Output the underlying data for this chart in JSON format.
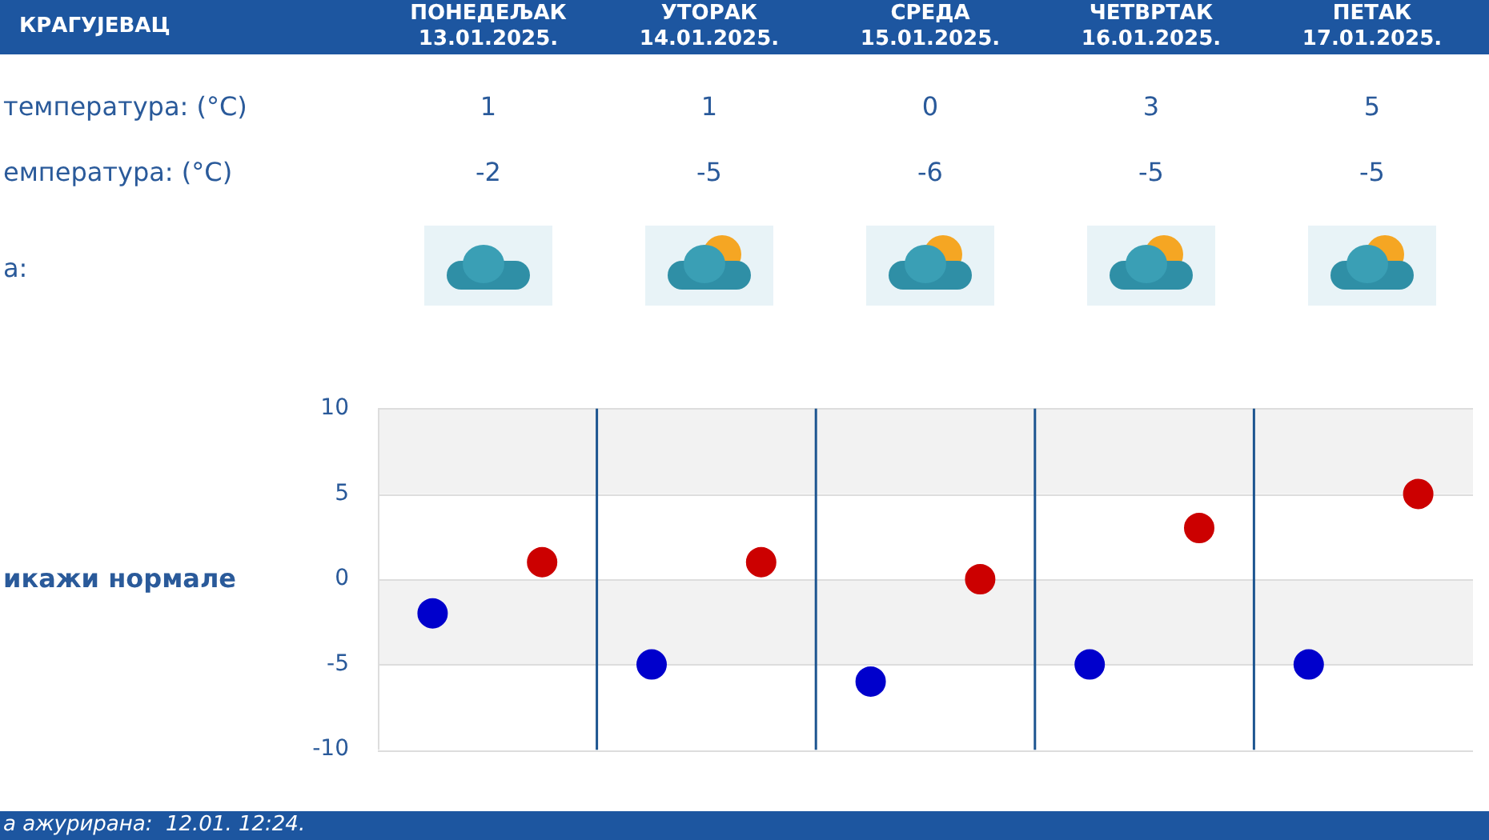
{
  "chart_data": {
    "type": "scatter",
    "title": "КРАГУЈЕВАЦ",
    "categories": [
      null,
      null,
      null,
      null,
      null
    ],
    "series": [
      {
        "color": "#cc0000",
        "values": [
          1,
          1,
          0,
          3,
          5
        ]
      },
      {
        "color": "#0000cc",
        "values": [
          -2,
          -5,
          -6,
          -5,
          -5
        ]
      }
    ],
    "ylim": [
      -10,
      10
    ],
    "yticks": [
      -10,
      -5,
      0,
      5,
      10
    ],
    "grid": true,
    "marker": "circle",
    "data_labels": true,
    "annotations": [
      "ПОНЕДЕЉАК 13.01.2025.",
      "УТОРАК 14.01.2025.",
      "СРЕДА 15.01.2025.",
      "ЧЕТВРТАК 16.01.2025.",
      "ПЕТАК 17.01.2025.",
      "температура: (°C)",
      "емпература: (°C)",
      "а:",
      "икажи нормале",
      "а ажурирана:  12.01. 12:24."
    ]
  }
}
